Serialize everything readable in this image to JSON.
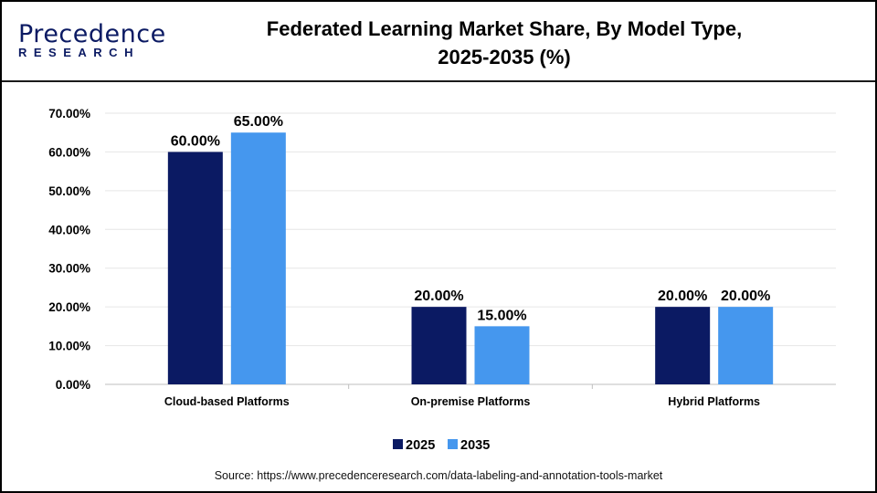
{
  "logo": {
    "line1": "Precedence",
    "line2": "RESEARCH"
  },
  "header": {
    "title_line1": "Federated Learning Market Share, By Model Type,",
    "title_line2": "2025-2035 (%)"
  },
  "source": "Source: https://www.precedenceresearch.com/data-labeling-and-annotation-tools-market",
  "chart_data": {
    "type": "bar",
    "title": "Federated Learning Market Share, By Model Type, 2025-2035 (%)",
    "categories": [
      "Cloud-based Platforms",
      "On-premise Platforms",
      "Hybrid Platforms"
    ],
    "series": [
      {
        "name": "2025",
        "values": [
          60,
          20,
          20
        ],
        "color": "#0b1a63",
        "labels": [
          "60.00%",
          "20.00%",
          "20.00%"
        ]
      },
      {
        "name": "2035",
        "values": [
          65,
          15,
          20
        ],
        "color": "#4597ee",
        "labels": [
          "65.00%",
          "15.00%",
          "20.00%"
        ]
      }
    ],
    "ylim": [
      0,
      70
    ],
    "yticks": [
      "0.00%",
      "10.00%",
      "20.00%",
      "30.00%",
      "40.00%",
      "50.00%",
      "60.00%",
      "70.00%"
    ],
    "grid": true,
    "legend": "bottom"
  }
}
